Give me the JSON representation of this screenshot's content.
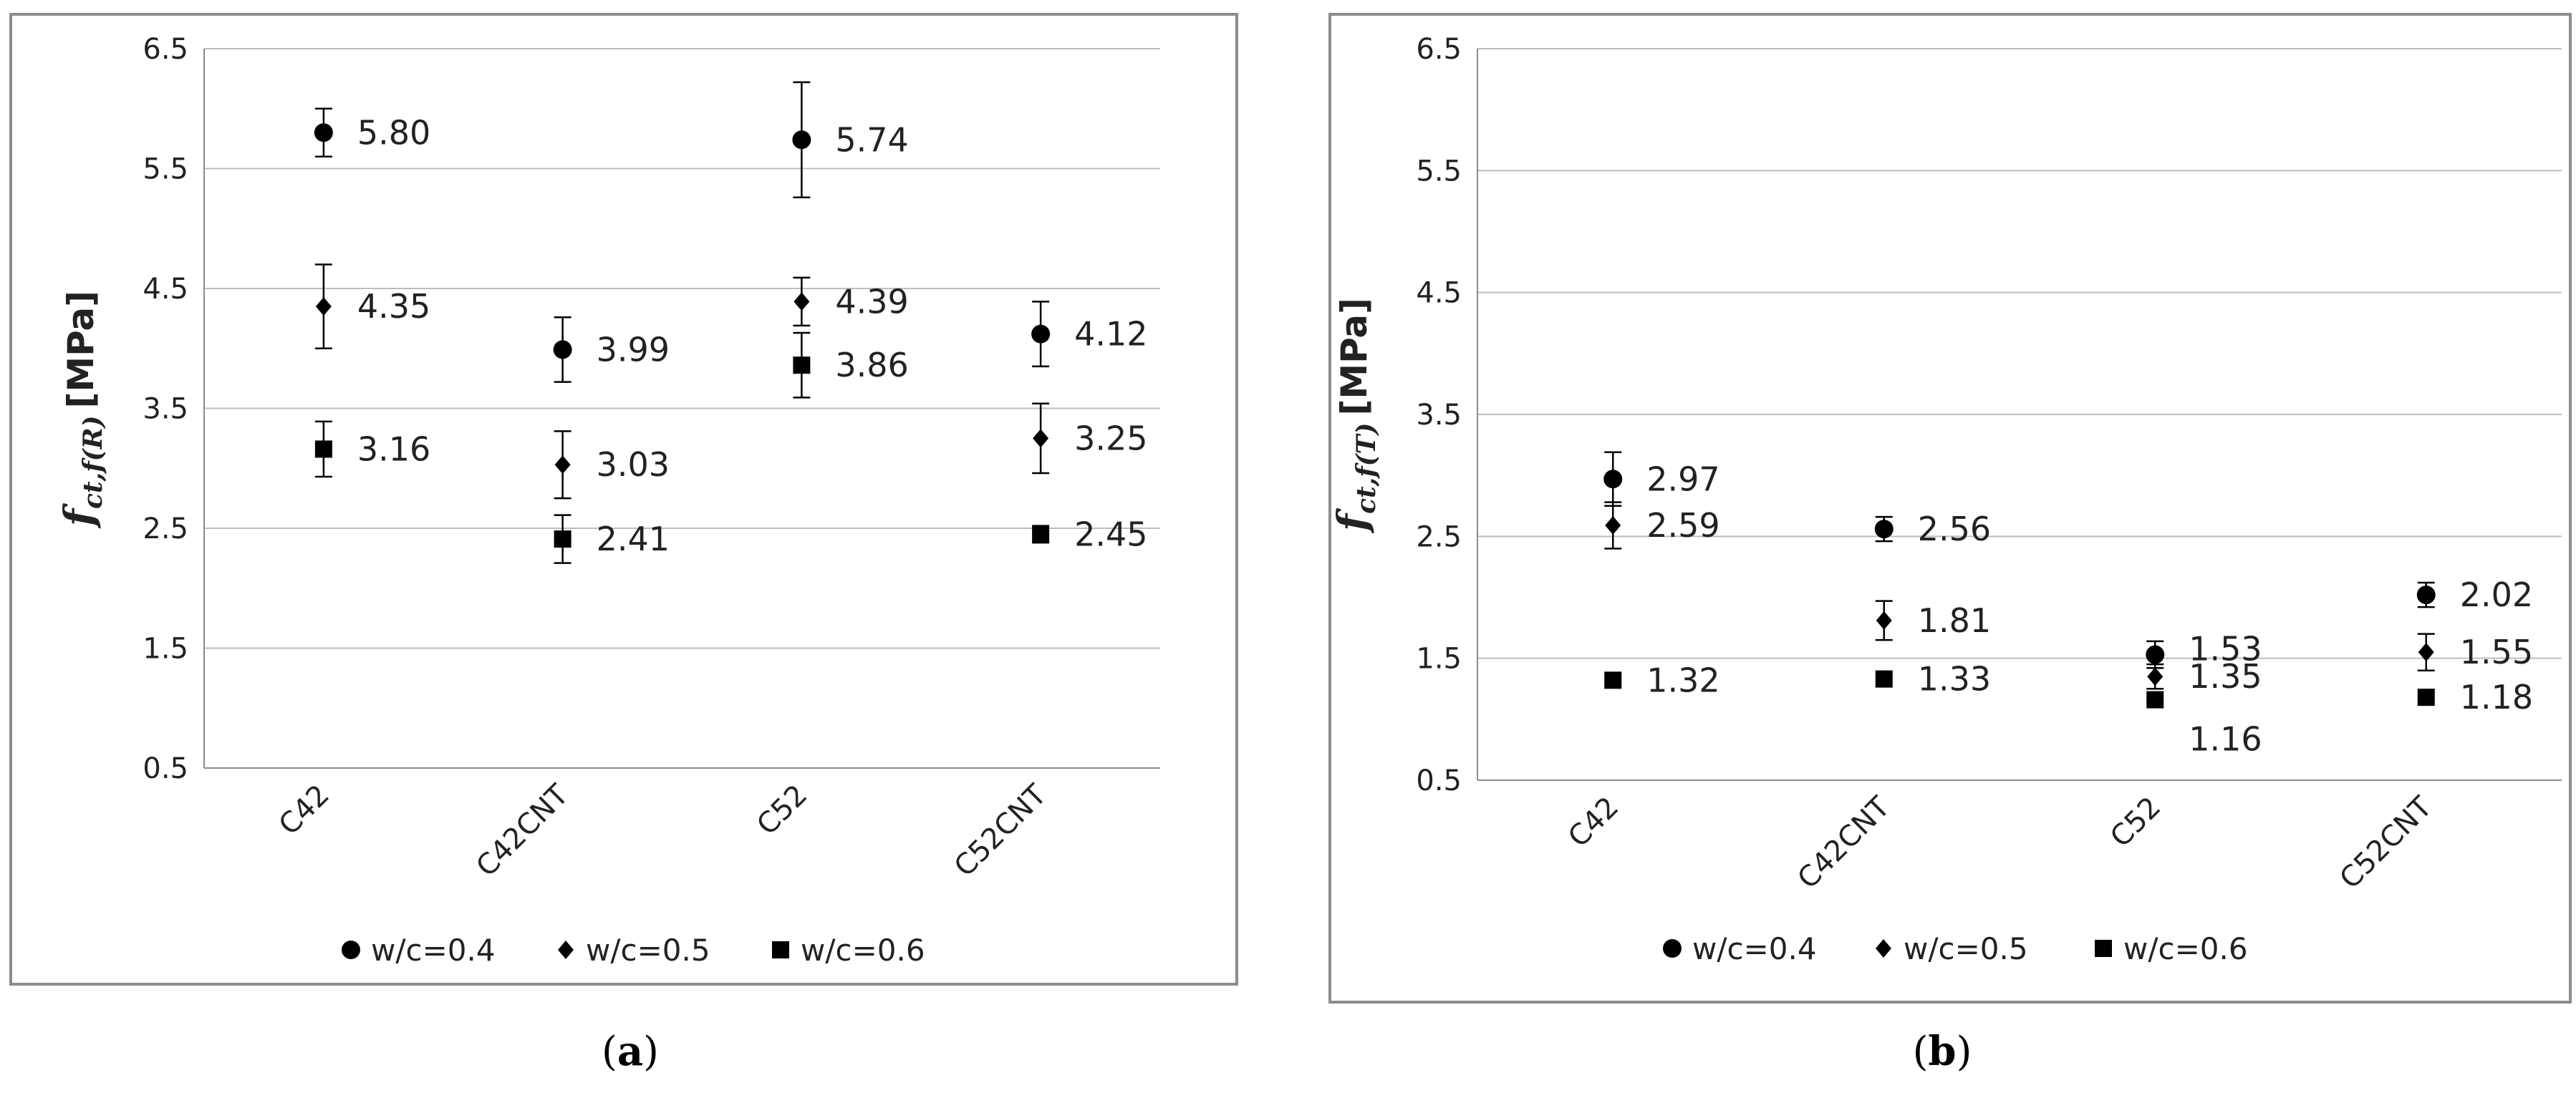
{
  "chart_data": [
    {
      "type": "scatter",
      "panel_label": "(a)",
      "categories": [
        "C42",
        "C42CNT",
        "C52",
        "C52CNT"
      ],
      "ylabel_main": "f",
      "ylabel_sub": "ct,f(R)",
      "ylabel_unit": "[MPa]",
      "ylim": [
        0.5,
        6.5
      ],
      "yticks": [
        "0.5",
        "1.5",
        "2.5",
        "3.5",
        "4.5",
        "5.5",
        "6.5"
      ],
      "grid": true,
      "legend_position": "bottom",
      "series": [
        {
          "name": "w/c=0.4",
          "marker": "circle",
          "values": [
            5.8,
            3.99,
            5.74,
            4.12
          ],
          "labels": [
            "5.80",
            "3.99",
            "5.74",
            "4.12"
          ],
          "err": [
            0.2,
            0.27,
            0.48,
            0.27
          ]
        },
        {
          "name": "w/c=0.5",
          "marker": "diamond",
          "values": [
            4.35,
            3.03,
            4.39,
            3.25
          ],
          "labels": [
            "4.35",
            "3.03",
            "4.39",
            "3.25"
          ],
          "err": [
            0.35,
            0.28,
            0.2,
            0.29
          ]
        },
        {
          "name": "w/c=0.6",
          "marker": "square",
          "values": [
            3.16,
            2.41,
            3.86,
            2.45
          ],
          "labels": [
            "3.16",
            "2.41",
            "3.86",
            "2.45"
          ],
          "err": [
            0.23,
            0.2,
            0.27,
            0.07
          ]
        }
      ]
    },
    {
      "type": "scatter",
      "panel_label": "(b)",
      "categories": [
        "C42",
        "C42CNT",
        "C52",
        "C52CNT"
      ],
      "ylabel_main": "f",
      "ylabel_sub": "ct,f(T)",
      "ylabel_unit": "[MPa]",
      "ylim": [
        0.5,
        6.5
      ],
      "yticks": [
        "0.5",
        "1.5",
        "2.5",
        "3.5",
        "4.5",
        "5.5",
        "6.5"
      ],
      "grid": true,
      "legend_position": "bottom",
      "series": [
        {
          "name": "w/c=0.4",
          "marker": "circle",
          "values": [
            2.97,
            2.56,
            1.53,
            2.02
          ],
          "labels": [
            "2.97",
            "2.56",
            "1.53",
            "2.02"
          ],
          "err": [
            0.22,
            0.1,
            0.11,
            0.1
          ]
        },
        {
          "name": "w/c=0.5",
          "marker": "diamond",
          "values": [
            2.59,
            1.81,
            1.35,
            1.55
          ],
          "labels": [
            "2.59",
            "1.81",
            "1.35",
            "1.55"
          ],
          "err": [
            0.19,
            0.16,
            0.1,
            0.15
          ]
        },
        {
          "name": "w/c=0.6",
          "marker": "square",
          "values": [
            1.32,
            1.33,
            1.16,
            1.18
          ],
          "labels": [
            "1.32",
            "1.33",
            "1.16",
            "1.18"
          ],
          "err": [
            0,
            0,
            0,
            0
          ]
        }
      ]
    }
  ]
}
